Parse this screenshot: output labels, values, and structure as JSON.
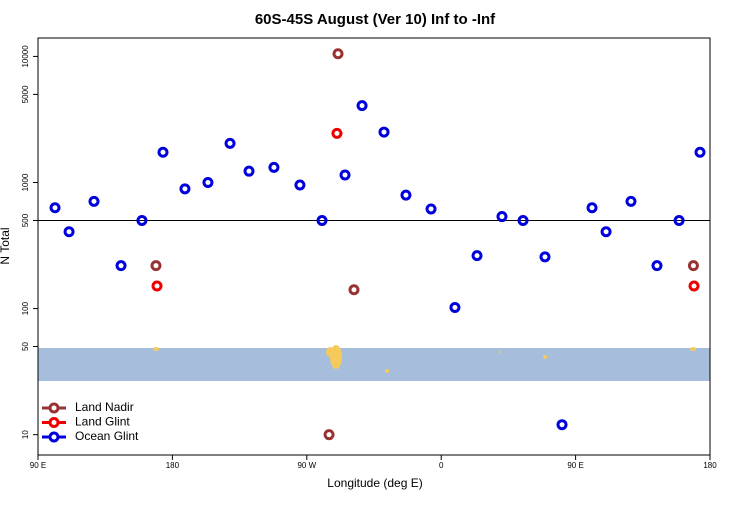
{
  "chart_data": {
    "type": "scatter",
    "title": "60S-45S August (Ver 10)   Inf to -Inf",
    "x_label": "Longitude (deg E)",
    "y_label": "N Total",
    "log_y": true,
    "xlim": [
      90,
      540
    ],
    "ylim": [
      6.9,
      14000
    ],
    "xticks": [
      {
        "value": 90,
        "label": "90 E"
      },
      {
        "value": 180,
        "label": "180"
      },
      {
        "value": 270,
        "label": "90 W"
      },
      {
        "value": 360,
        "label": "0"
      },
      {
        "value": 450,
        "label": "90 E"
      },
      {
        "value": 540,
        "label": "180"
      }
    ],
    "yticks": [
      10,
      50,
      100,
      500,
      1000,
      5000,
      10000
    ],
    "reference_line": 500,
    "legend": "bottom-left",
    "series": [
      {
        "name": "Land Nadir",
        "color": "#993333",
        "x": [
          169.0,
          290.9,
          301.6,
          284.9,
          528.9
        ],
        "values": [
          219,
          10500,
          141,
          10,
          219
        ]
      },
      {
        "name": "Land Glint",
        "color": "#ee0000",
        "x": [
          169.7,
          290.2,
          529.3
        ],
        "values": [
          151,
          2455,
          151
        ]
      },
      {
        "name": "Ocean Glint",
        "color": "#0000dd",
        "x": [
          101.4,
          110.8,
          127.5,
          145.6,
          159.6,
          173.7,
          188.4,
          203.8,
          218.6,
          231.3,
          248.0,
          265.4,
          280.2,
          295.6,
          307.0,
          321.7,
          336.4,
          353.2,
          369.2,
          384.0,
          400.7,
          414.8,
          429.5,
          440.9,
          461.0,
          470.4,
          487.1,
          504.5,
          519.3,
          533.3
        ],
        "values": [
          631,
          407,
          708,
          219,
          500,
          1738,
          891,
          1000,
          2042,
          1230,
          1318,
          955,
          500,
          1148,
          4074,
          2512,
          794,
          617,
          102,
          263,
          537,
          500,
          257,
          12,
          631,
          407,
          708,
          219,
          500,
          1738
        ]
      }
    ]
  }
}
